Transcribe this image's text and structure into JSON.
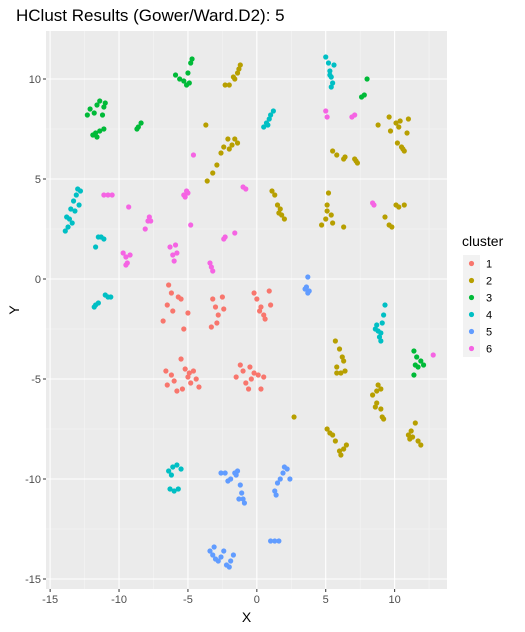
{
  "chart_data": {
    "type": "scatter",
    "title": "HClust Results (Gower/Ward.D2):  5",
    "xlabel": "X",
    "ylabel": "Y",
    "xlim": [
      -15.3,
      13.8
    ],
    "ylim": [
      -15.5,
      12.4
    ],
    "x_ticks": [
      -15,
      -10,
      -5,
      0,
      5,
      10
    ],
    "y_ticks": [
      -15,
      -10,
      -5,
      0,
      5,
      10
    ],
    "x_tick_labels": [
      "-15",
      "-10",
      "-5",
      "0",
      "5",
      "10"
    ],
    "y_tick_labels": [
      "-15",
      "-10",
      "-5",
      "0",
      "5",
      "10"
    ],
    "grid": true,
    "legend_title": "cluster",
    "legend_position": "right",
    "series": [
      {
        "name": "1",
        "color": "#F8766D",
        "points": [
          [
            -6.4,
            -0.3
          ],
          [
            -6.2,
            -0.7
          ],
          [
            -6.5,
            -1.3
          ],
          [
            -6.8,
            -2.1
          ],
          [
            -6.1,
            -1.6
          ],
          [
            -5.7,
            -0.9
          ],
          [
            -5.5,
            -1.0
          ],
          [
            -5.3,
            -2.5
          ],
          [
            -5.0,
            -1.7
          ],
          [
            -3.2,
            -1.0
          ],
          [
            -3.0,
            -1.4
          ],
          [
            -2.8,
            -1.8
          ],
          [
            -2.9,
            -2.2
          ],
          [
            -3.3,
            -2.4
          ],
          [
            -2.5,
            -0.9
          ],
          [
            -2.4,
            -1.5
          ],
          [
            -0.2,
            -0.7
          ],
          [
            0.0,
            -1.0
          ],
          [
            0.3,
            -1.4
          ],
          [
            0.5,
            -1.8
          ],
          [
            0.6,
            -2.0
          ],
          [
            0.9,
            -0.6
          ],
          [
            1.0,
            -1.3
          ],
          [
            0.2,
            -1.6
          ],
          [
            -6.6,
            -4.6
          ],
          [
            -6.2,
            -4.8
          ],
          [
            -6.0,
            -5.1
          ],
          [
            -5.8,
            -5.6
          ],
          [
            -5.5,
            -4.0
          ],
          [
            -5.2,
            -4.5
          ],
          [
            -5.0,
            -4.9
          ],
          [
            -4.8,
            -5.2
          ],
          [
            -4.6,
            -4.6
          ],
          [
            -4.4,
            -5.0
          ],
          [
            -4.2,
            -5.4
          ],
          [
            -6.5,
            -5.3
          ],
          [
            -5.4,
            -5.5
          ],
          [
            -4.9,
            -4.7
          ],
          [
            -1.5,
            -4.9
          ],
          [
            -1.2,
            -4.3
          ],
          [
            -1.0,
            -4.6
          ],
          [
            -0.8,
            -5.2
          ],
          [
            -0.6,
            -5.5
          ],
          [
            -0.4,
            -5.0
          ],
          [
            -0.2,
            -4.7
          ],
          [
            0.1,
            -4.8
          ],
          [
            0.3,
            -5.5
          ],
          [
            0.5,
            -4.9
          ],
          [
            -0.5,
            -4.4
          ]
        ]
      },
      {
        "name": "2",
        "color": "#B79F00",
        "points": [
          [
            -2.3,
            9.7
          ],
          [
            -2.0,
            9.7
          ],
          [
            -1.6,
            10.0
          ],
          [
            -1.4,
            10.3
          ],
          [
            -1.3,
            10.5
          ],
          [
            -1.2,
            10.7
          ],
          [
            -1.7,
            10.1
          ],
          [
            -3.7,
            7.7
          ],
          [
            -2.1,
            7.0
          ],
          [
            -2.4,
            6.6
          ],
          [
            -2.0,
            6.5
          ],
          [
            -1.8,
            6.7
          ],
          [
            -1.6,
            7.0
          ],
          [
            -1.4,
            6.8
          ],
          [
            -2.6,
            6.3
          ],
          [
            -3.2,
            5.3
          ],
          [
            -3.6,
            4.9
          ],
          [
            -2.9,
            5.7
          ],
          [
            1.1,
            4.4
          ],
          [
            1.3,
            4.2
          ],
          [
            1.5,
            3.7
          ],
          [
            1.7,
            3.5
          ],
          [
            1.8,
            3.2
          ],
          [
            2.0,
            3.0
          ],
          [
            1.6,
            3.3
          ],
          [
            4.7,
            2.7
          ],
          [
            5.0,
            3.0
          ],
          [
            5.1,
            3.4
          ],
          [
            5.1,
            3.7
          ],
          [
            5.2,
            4.3
          ],
          [
            5.4,
            3.2
          ],
          [
            5.5,
            2.8
          ],
          [
            6.3,
            2.6
          ],
          [
            5.5,
            6.4
          ],
          [
            5.8,
            6.2
          ],
          [
            6.3,
            6.0
          ],
          [
            6.4,
            6.1
          ],
          [
            7.1,
            6.0
          ],
          [
            7.3,
            5.8
          ],
          [
            7.2,
            5.9
          ],
          [
            8.8,
            7.7
          ],
          [
            9.7,
            7.4
          ],
          [
            9.6,
            8.1
          ],
          [
            10.1,
            7.8
          ],
          [
            10.2,
            6.8
          ],
          [
            10.3,
            7.6
          ],
          [
            10.5,
            6.6
          ],
          [
            10.7,
            6.4
          ],
          [
            11.0,
            8.0
          ],
          [
            10.9,
            7.3
          ],
          [
            10.4,
            7.9
          ],
          [
            10.6,
            6.5
          ],
          [
            9.3,
            3.1
          ],
          [
            9.6,
            2.7
          ],
          [
            10.1,
            3.7
          ],
          [
            10.3,
            3.6
          ],
          [
            10.7,
            3.7
          ],
          [
            9.8,
            2.6
          ],
          [
            5.7,
            -3.1
          ],
          [
            6.0,
            -3.5
          ],
          [
            6.2,
            -3.9
          ],
          [
            6.3,
            -4.1
          ],
          [
            6.4,
            -4.6
          ],
          [
            5.8,
            -4.4
          ],
          [
            5.8,
            -4.7
          ],
          [
            6.1,
            -4.7
          ],
          [
            8.4,
            -5.8
          ],
          [
            8.7,
            -5.6
          ],
          [
            8.8,
            -5.3
          ],
          [
            9.0,
            -5.5
          ],
          [
            8.7,
            -6.2
          ],
          [
            9.0,
            -6.5
          ],
          [
            9.1,
            -6.9
          ],
          [
            9.2,
            -7.0
          ],
          [
            8.6,
            -6.4
          ],
          [
            5.1,
            -7.5
          ],
          [
            5.3,
            -7.7
          ],
          [
            5.5,
            -7.8
          ],
          [
            5.7,
            -8.1
          ],
          [
            6.0,
            -8.6
          ],
          [
            6.1,
            -8.8
          ],
          [
            6.3,
            -8.5
          ],
          [
            6.5,
            -8.3
          ],
          [
            2.7,
            -6.9
          ],
          [
            11.0,
            -7.8
          ],
          [
            11.1,
            -8.0
          ],
          [
            11.3,
            -7.9
          ],
          [
            11.5,
            -7.2
          ],
          [
            11.7,
            -8.1
          ],
          [
            11.9,
            -8.3
          ],
          [
            11.2,
            -7.6
          ]
        ]
      },
      {
        "name": "3",
        "color": "#00BA38",
        "points": [
          [
            -12.3,
            8.2
          ],
          [
            -12.1,
            8.5
          ],
          [
            -11.8,
            8.3
          ],
          [
            -11.6,
            8.7
          ],
          [
            -11.4,
            8.9
          ],
          [
            -11.2,
            8.2
          ],
          [
            -11.1,
            8.6
          ],
          [
            -11.0,
            8.8
          ],
          [
            -11.9,
            7.2
          ],
          [
            -11.7,
            7.3
          ],
          [
            -11.4,
            7.4
          ],
          [
            -11.1,
            7.5
          ],
          [
            -11.6,
            7.1
          ],
          [
            -8.7,
            7.5
          ],
          [
            -8.4,
            7.8
          ],
          [
            -8.6,
            7.6
          ],
          [
            -5.9,
            10.2
          ],
          [
            -5.6,
            10.0
          ],
          [
            -5.3,
            9.9
          ],
          [
            -5.1,
            9.7
          ],
          [
            -5.0,
            10.3
          ],
          [
            -4.8,
            10.8
          ],
          [
            -4.7,
            11.0
          ],
          [
            -4.9,
            9.8
          ],
          [
            7.6,
            9.1
          ],
          [
            7.8,
            9.2
          ],
          [
            8.0,
            10.0
          ],
          [
            11.4,
            -3.6
          ],
          [
            11.6,
            -3.9
          ],
          [
            11.5,
            -4.3
          ],
          [
            11.7,
            -4.4
          ],
          [
            11.9,
            -4.1
          ],
          [
            12.1,
            -4.3
          ],
          [
            11.4,
            -4.8
          ]
        ]
      },
      {
        "name": "4",
        "color": "#00BFC4",
        "points": [
          [
            -13.9,
            2.4
          ],
          [
            -13.7,
            2.6
          ],
          [
            -13.6,
            3.0
          ],
          [
            -13.4,
            2.8
          ],
          [
            -13.5,
            3.5
          ],
          [
            -13.3,
            3.9
          ],
          [
            -13.1,
            4.2
          ],
          [
            -13.0,
            4.5
          ],
          [
            -12.9,
            3.7
          ],
          [
            -13.2,
            3.4
          ],
          [
            -12.8,
            4.4
          ],
          [
            -13.8,
            3.1
          ],
          [
            -11.7,
            1.6
          ],
          [
            -11.5,
            2.1
          ],
          [
            -11.3,
            2.1
          ],
          [
            -11.1,
            2.0
          ],
          [
            -11.8,
            -1.4
          ],
          [
            -11.7,
            -1.3
          ],
          [
            -11.5,
            -1.2
          ],
          [
            -11.0,
            -0.8
          ],
          [
            -10.8,
            -0.9
          ],
          [
            -10.6,
            -0.9
          ],
          [
            0.5,
            7.6
          ],
          [
            0.7,
            7.8
          ],
          [
            0.9,
            8.0
          ],
          [
            1.0,
            8.2
          ],
          [
            1.2,
            8.4
          ],
          [
            0.8,
            7.7
          ],
          [
            5.0,
            11.1
          ],
          [
            5.2,
            10.8
          ],
          [
            5.3,
            10.4
          ],
          [
            5.4,
            10.1
          ],
          [
            5.5,
            9.8
          ],
          [
            5.4,
            9.6
          ],
          [
            5.6,
            10.7
          ],
          [
            5.3,
            10.2
          ],
          [
            8.7,
            -2.3
          ],
          [
            8.8,
            -2.6
          ],
          [
            8.9,
            -2.9
          ],
          [
            9.0,
            -2.7
          ],
          [
            9.1,
            -2.2
          ],
          [
            9.2,
            -1.8
          ],
          [
            9.3,
            -1.3
          ],
          [
            8.6,
            -2.5
          ],
          [
            9.0,
            -3.1
          ],
          [
            -6.4,
            -9.6
          ],
          [
            -6.1,
            -9.4
          ],
          [
            -5.8,
            -9.3
          ],
          [
            -5.5,
            -9.5
          ],
          [
            -6.3,
            -10.5
          ],
          [
            -6.0,
            -10.6
          ],
          [
            -5.7,
            -10.5
          ],
          [
            -6.2,
            -9.8
          ]
        ]
      },
      {
        "name": "5",
        "color": "#619CFF",
        "points": [
          [
            3.7,
            0.1
          ],
          [
            3.6,
            -0.4
          ],
          [
            3.7,
            -0.7
          ],
          [
            3.5,
            -0.5
          ],
          [
            3.8,
            -0.6
          ],
          [
            -2.6,
            -9.7
          ],
          [
            -2.3,
            -9.7
          ],
          [
            -1.9,
            -10.0
          ],
          [
            -1.6,
            -9.7
          ],
          [
            -1.4,
            -9.6
          ],
          [
            -1.2,
            -10.3
          ],
          [
            -1.1,
            -10.7
          ],
          [
            -1.0,
            -11.0
          ],
          [
            -0.9,
            -11.2
          ],
          [
            -1.3,
            -11.0
          ],
          [
            -2.1,
            -10.1
          ],
          [
            -1.5,
            -9.8
          ],
          [
            1.3,
            -10.6
          ],
          [
            1.5,
            -10.2
          ],
          [
            1.7,
            -10.0
          ],
          [
            1.9,
            -9.7
          ],
          [
            2.2,
            -9.5
          ],
          [
            2.4,
            -10.0
          ],
          [
            1.4,
            -10.8
          ],
          [
            2.0,
            -9.4
          ],
          [
            1.0,
            -13.1
          ],
          [
            1.3,
            -13.1
          ],
          [
            1.6,
            -13.1
          ],
          [
            -3.4,
            -13.6
          ],
          [
            -3.2,
            -13.8
          ],
          [
            -3.0,
            -14.0
          ],
          [
            -2.8,
            -14.1
          ],
          [
            -2.6,
            -13.9
          ],
          [
            -2.4,
            -13.6
          ],
          [
            -2.2,
            -14.3
          ],
          [
            -1.9,
            -14.1
          ],
          [
            -1.7,
            -13.8
          ],
          [
            -2.0,
            -14.4
          ],
          [
            -3.1,
            -13.4
          ]
        ]
      },
      {
        "name": "6",
        "color": "#F564E3",
        "points": [
          [
            -11.1,
            4.2
          ],
          [
            -10.8,
            4.2
          ],
          [
            -10.5,
            4.2
          ],
          [
            -9.3,
            3.6
          ],
          [
            -7.9,
            2.9
          ],
          [
            -7.8,
            3.1
          ],
          [
            -8.1,
            2.5
          ],
          [
            -7.7,
            2.9
          ],
          [
            -9.7,
            1.3
          ],
          [
            -9.5,
            1.1
          ],
          [
            -9.4,
            0.8
          ],
          [
            -9.2,
            1.2
          ],
          [
            -9.5,
            0.7
          ],
          [
            -6.3,
            1.6
          ],
          [
            -6.1,
            1.2
          ],
          [
            -5.9,
            1.7
          ],
          [
            -5.8,
            1.3
          ],
          [
            -6.0,
            0.9
          ],
          [
            -5.3,
            4.2
          ],
          [
            -5.1,
            4.4
          ],
          [
            -5.0,
            4.3
          ],
          [
            -5.2,
            4.1
          ],
          [
            -4.6,
            6.2
          ],
          [
            -4.8,
            2.7
          ],
          [
            -3.4,
            0.8
          ],
          [
            -3.3,
            0.6
          ],
          [
            -3.2,
            0.4
          ],
          [
            -2.4,
            2.0
          ],
          [
            -2.3,
            2.1
          ],
          [
            -1.6,
            2.3
          ],
          [
            -1.0,
            4.6
          ],
          [
            -0.8,
            4.5
          ],
          [
            5.0,
            8.4
          ],
          [
            5.1,
            8.1
          ],
          [
            6.9,
            8.1
          ],
          [
            7.1,
            8.2
          ],
          [
            8.4,
            3.8
          ],
          [
            8.5,
            3.7
          ],
          [
            12.8,
            -3.8
          ]
        ]
      }
    ]
  }
}
